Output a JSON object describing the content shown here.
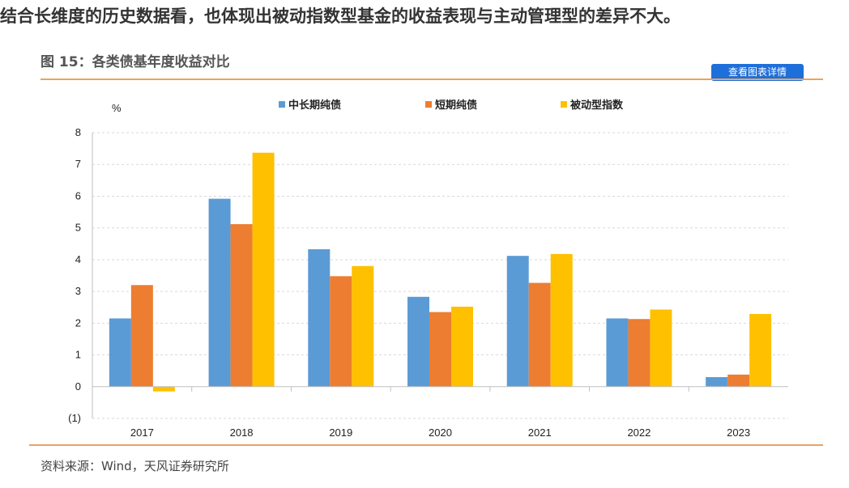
{
  "headline": "结合长维度的历史数据看，也体现出被动指数型基金的收益表现与主动管理型的差异不大。",
  "figure": {
    "title": "图 15：各类债基年度收益对比",
    "detail_button": "查看图表详情",
    "source": "资料来源：Wind，天风证券研究所"
  },
  "chart_data": {
    "type": "bar",
    "categories": [
      "2017",
      "2018",
      "2019",
      "2020",
      "2021",
      "2022",
      "2023"
    ],
    "series": [
      {
        "name": "中长期纯债",
        "color": "#5b9bd5",
        "values": [
          2.15,
          5.92,
          4.33,
          2.83,
          4.12,
          2.15,
          0.3
        ]
      },
      {
        "name": "短期纯债",
        "color": "#ed7d31",
        "values": [
          3.2,
          5.12,
          3.48,
          2.35,
          3.27,
          2.13,
          0.38
        ]
      },
      {
        "name": "被动型指数",
        "color": "#ffc000",
        "values": [
          -0.15,
          7.37,
          3.8,
          2.52,
          4.18,
          2.43,
          2.29
        ]
      }
    ],
    "ylabel": "%",
    "ylim": [
      -1,
      8
    ],
    "yticks": [
      -1,
      0,
      1,
      2,
      3,
      4,
      5,
      6,
      7,
      8
    ],
    "ytick_labels": [
      "(1)",
      "0",
      "1",
      "2",
      "3",
      "4",
      "5",
      "6",
      "7",
      "8"
    ],
    "grid": true,
    "legend_position": "top"
  }
}
